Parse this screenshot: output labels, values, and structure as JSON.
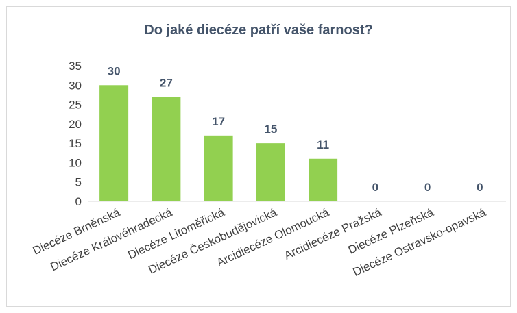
{
  "chart_data": {
    "type": "bar",
    "title": "Do jaké diecéze patří vaše farnost?",
    "xlabel": "",
    "ylabel": "",
    "categories": [
      "Diecéze Brněnská",
      "Diecéze Královéhradecká",
      "Diecéze Litoměřická",
      "Diecéze Českobudějovická",
      "Arcidiecéze Olomoucká",
      "Arcidiecéze Pražská",
      "Diecéze Plzeňská",
      "Diecéze Ostravsko-opavská"
    ],
    "values": [
      30,
      27,
      17,
      15,
      11,
      0,
      0,
      0
    ],
    "ylim": [
      0,
      35
    ],
    "yticks": [
      "0",
      "5",
      "10",
      "15",
      "20",
      "25",
      "30",
      "35"
    ],
    "grid": false,
    "legend": "none",
    "data_labels": true,
    "colors": {
      "bar": "#92d050",
      "axis": "#d9d9d9",
      "text": "#404040",
      "title": "#44546a",
      "data_label": "#44546a"
    }
  }
}
